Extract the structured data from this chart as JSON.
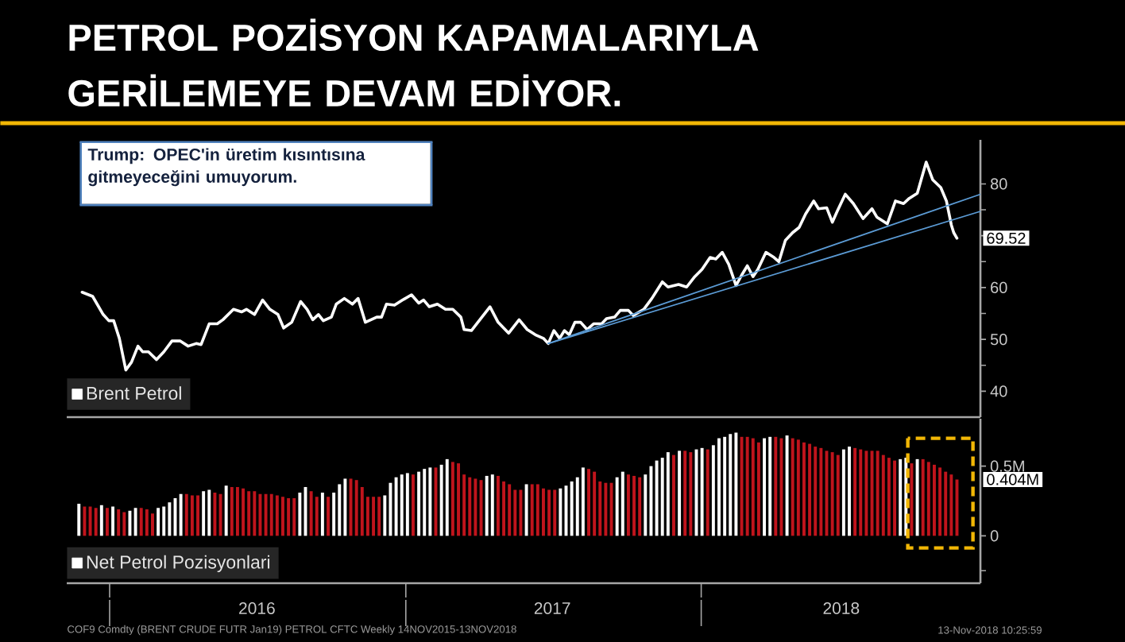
{
  "chart_data": [
    {
      "type": "line",
      "title": "PETROL POZİSYON KAPAMALARIYLA GERİLEMEYE DEVAM EDİYOR.",
      "tick_labels": "y",
      "legend": "bottom left",
      "xlim": [
        "2015-11-09",
        "2018-12-12"
      ],
      "ylim": [
        35,
        88.5
      ],
      "yticks": [
        40,
        {
          "value": 45,
          "label": null
        },
        50,
        {
          "value": 55,
          "label": null
        },
        60,
        {
          "value": 65,
          "label": null
        },
        {
          "value": 70,
          "label": null
        },
        {
          "value": 75,
          "label": null
        },
        80
      ],
      "annotations": [
        "Trump: OPEC'in üretim kısıntısına gitmeyeceğini umuyorum.",
        {
          "text": "69.52",
          "x": "2018-11-13",
          "y": 69.52
        }
      ],
      "series": [
        {
          "name": "Brent Petrol",
          "color": "#ffffff",
          "x": [
            "2015-11-28",
            "2015-12-11",
            "2015-12-24",
            "2015-12-31",
            "2016-01-06",
            "2016-01-13",
            "2016-01-21",
            "2016-01-28",
            "2016-02-05",
            "2016-02-11",
            "2016-02-18",
            "2016-02-28",
            "2016-03-08",
            "2016-03-18",
            "2016-03-28",
            "2016-04-07",
            "2016-04-17",
            "2016-04-23",
            "2016-05-03",
            "2016-05-13",
            "2016-05-20",
            "2016-06-02",
            "2016-06-12",
            "2016-06-18",
            "2016-06-28",
            "2016-07-08",
            "2016-07-17",
            "2016-07-27",
            "2016-08-03",
            "2016-08-13",
            "2016-08-24",
            "2016-09-01",
            "2016-09-08",
            "2016-09-15",
            "2016-09-21",
            "2016-10-01",
            "2016-10-07",
            "2016-10-17",
            "2016-10-27",
            "2016-11-03",
            "2016-11-12",
            "2016-11-26",
            "2016-12-02",
            "2016-12-08",
            "2016-12-18",
            "2016-12-28",
            "2017-01-08",
            "2017-01-17",
            "2017-01-23",
            "2017-01-30",
            "2017-02-09",
            "2017-02-19",
            "2017-02-28",
            "2017-03-10",
            "2017-03-14",
            "2017-03-23",
            "2017-04-05",
            "2017-04-15",
            "2017-04-25",
            "2017-05-08",
            "2017-05-21",
            "2017-05-31",
            "2017-06-10",
            "2017-06-20",
            "2017-06-26",
            "2017-07-03",
            "2017-07-10",
            "2017-07-16",
            "2017-07-22",
            "2017-07-29",
            "2017-08-05",
            "2017-08-13",
            "2017-08-21",
            "2017-08-31",
            "2017-09-06",
            "2017-09-16",
            "2017-09-23",
            "2017-10-03",
            "2017-10-09",
            "2017-10-22",
            "2017-11-01",
            "2017-11-14",
            "2017-11-21",
            "2017-12-04",
            "2017-12-14",
            "2017-12-24",
            "2018-01-02",
            "2018-01-12",
            "2018-01-19",
            "2018-01-27",
            "2018-02-04",
            "2018-02-13",
            "2018-02-20",
            "2018-02-27",
            "2018-03-06",
            "2018-03-12",
            "2018-03-22",
            "2018-04-01",
            "2018-04-07",
            "2018-04-15",
            "2018-04-24",
            "2018-05-02",
            "2018-05-10",
            "2018-05-20",
            "2018-05-26",
            "2018-06-05",
            "2018-06-12",
            "2018-06-18",
            "2018-06-28",
            "2018-07-08",
            "2018-07-20",
            "2018-07-31",
            "2018-08-06",
            "2018-08-19",
            "2018-08-29",
            "2018-09-08",
            "2018-09-15",
            "2018-09-25",
            "2018-10-06",
            "2018-10-14",
            "2018-10-24",
            "2018-10-31",
            "2018-11-06",
            "2018-11-09",
            "2018-11-13"
          ],
          "values": [
            59.1,
            58.3,
            54.8,
            53.6,
            53.6,
            50.2,
            44.1,
            45.6,
            48.7,
            47.6,
            47.6,
            46.1,
            47.6,
            49.7,
            49.7,
            48.7,
            49.2,
            49.0,
            53.0,
            53.0,
            53.8,
            55.8,
            55.3,
            55.8,
            54.8,
            57.6,
            55.8,
            54.8,
            52.2,
            53.3,
            57.3,
            55.8,
            53.8,
            54.8,
            53.6,
            54.3,
            56.8,
            57.9,
            56.8,
            57.9,
            53.3,
            54.3,
            54.3,
            56.8,
            56.6,
            57.6,
            58.6,
            57.0,
            57.6,
            56.3,
            56.8,
            55.8,
            55.8,
            54.3,
            51.9,
            51.7,
            54.3,
            56.3,
            53.3,
            51.2,
            53.8,
            51.9,
            50.9,
            50.2,
            49.2,
            51.7,
            50.2,
            51.7,
            50.9,
            53.3,
            53.3,
            51.9,
            53.0,
            53.0,
            54.0,
            54.3,
            55.6,
            55.6,
            54.6,
            55.8,
            57.9,
            61.1,
            60.1,
            60.6,
            60.1,
            62.1,
            63.5,
            65.8,
            65.5,
            66.8,
            64.5,
            60.4,
            62.4,
            64.2,
            62.1,
            63.5,
            66.8,
            65.8,
            65.0,
            69.1,
            70.6,
            71.6,
            74.2,
            76.7,
            75.2,
            75.4,
            72.6,
            74.7,
            78.0,
            76.2,
            73.3,
            75.2,
            73.6,
            72.3,
            76.7,
            76.2,
            77.2,
            78.2,
            84.2,
            80.8,
            79.3,
            76.7,
            72.1,
            70.6,
            69.52
          ]
        },
        {
          "type": "line",
          "color": "#5b9bd5",
          "x": [
            "2017-06-26",
            "2018-12-12"
          ],
          "values": [
            49.2,
            78.0
          ]
        },
        {
          "type": "line",
          "color": "#5b9bd5",
          "x": [
            "2017-06-26",
            "2018-12-12"
          ],
          "values": [
            49.2,
            74.7
          ]
        }
      ]
    },
    {
      "type": "bar",
      "legend": "bottom left",
      "xlim": [
        "2015-11-09",
        "2018-12-12"
      ],
      "ylim": [
        -0.34,
        0.84
      ],
      "xticks": [
        {
          "value": "2016-01-01",
          "label": null
        },
        {
          "value": "2016-07-01",
          "label": "2016"
        },
        {
          "value": "2017-01-01",
          "label": null
        },
        {
          "value": "2017-07-01",
          "label": "2017"
        },
        {
          "value": "2018-01-01",
          "label": null
        },
        {
          "value": "2018-06-23",
          "label": "2018"
        }
      ],
      "yticks": [
        {
          "value": -0.25,
          "label": null
        },
        0,
        {
          "value": 0.5,
          "label": "0.5M"
        }
      ],
      "annotations": [
        "COF9 Comdty (BRENT CRUDE FUTR Jan19) PETROL CFTC Weekly 14NOV2015-13NOV2018",
        {
          "text": "0.404M",
          "x": "2018-11-13",
          "y": 0.404
        },
        "13-Nov-2018 10:25:59"
      ],
      "series": [
        {
          "name": "Net Petrol Pozisyonlari",
          "color": "#ffffff",
          "x": [
            "2015-11-24",
            "2015-12-01",
            "2015-12-08",
            "2015-12-15",
            "2015-12-22",
            "2015-12-29",
            "2016-01-05",
            "2016-01-12",
            "2016-01-19",
            "2016-01-26",
            "2016-02-02",
            "2016-02-09",
            "2016-02-16",
            "2016-02-23",
            "2016-03-01",
            "2016-03-08",
            "2016-03-15",
            "2016-03-22",
            "2016-03-29",
            "2016-04-05",
            "2016-04-12",
            "2016-04-19",
            "2016-04-26",
            "2016-05-03",
            "2016-05-10",
            "2016-05-17",
            "2016-05-24",
            "2016-05-31",
            "2016-06-07",
            "2016-06-14",
            "2016-06-21",
            "2016-06-28",
            "2016-07-05",
            "2016-07-12",
            "2016-07-19",
            "2016-07-26",
            "2016-08-02",
            "2016-08-09",
            "2016-08-16",
            "2016-08-23",
            "2016-08-30",
            "2016-09-06",
            "2016-09-13",
            "2016-09-20",
            "2016-09-27",
            "2016-10-04",
            "2016-10-11",
            "2016-10-18",
            "2016-10-25",
            "2016-11-01",
            "2016-11-08",
            "2016-11-15",
            "2016-11-22",
            "2016-11-29",
            "2016-12-06",
            "2016-12-13",
            "2016-12-20",
            "2016-12-27",
            "2017-01-03",
            "2017-01-10",
            "2017-01-17",
            "2017-01-24",
            "2017-01-31",
            "2017-02-07",
            "2017-02-14",
            "2017-02-21",
            "2017-02-28",
            "2017-03-07",
            "2017-03-14",
            "2017-03-21",
            "2017-03-28",
            "2017-04-04",
            "2017-04-11",
            "2017-04-18",
            "2017-04-25",
            "2017-05-02",
            "2017-05-09",
            "2017-05-16",
            "2017-05-23",
            "2017-05-30",
            "2017-06-06",
            "2017-06-13",
            "2017-06-20",
            "2017-06-27",
            "2017-07-04",
            "2017-07-11",
            "2017-07-18",
            "2017-07-25",
            "2017-08-01",
            "2017-08-08",
            "2017-08-15",
            "2017-08-22",
            "2017-08-29",
            "2017-09-05",
            "2017-09-12",
            "2017-09-19",
            "2017-09-26",
            "2017-10-03",
            "2017-10-10",
            "2017-10-17",
            "2017-10-24",
            "2017-10-31",
            "2017-11-07",
            "2017-11-14",
            "2017-11-21",
            "2017-11-28",
            "2017-12-05",
            "2017-12-12",
            "2017-12-19",
            "2017-12-26",
            "2018-01-02",
            "2018-01-09",
            "2018-01-16",
            "2018-01-23",
            "2018-01-30",
            "2018-02-06",
            "2018-02-13",
            "2018-02-20",
            "2018-02-27",
            "2018-03-06",
            "2018-03-13",
            "2018-03-20",
            "2018-03-27",
            "2018-04-03",
            "2018-04-10",
            "2018-04-17",
            "2018-04-24",
            "2018-05-01",
            "2018-05-08",
            "2018-05-15",
            "2018-05-22",
            "2018-05-29",
            "2018-06-05",
            "2018-06-12",
            "2018-06-19",
            "2018-06-26",
            "2018-07-03",
            "2018-07-10",
            "2018-07-17",
            "2018-07-24",
            "2018-07-31",
            "2018-08-07",
            "2018-08-14",
            "2018-08-21",
            "2018-08-28",
            "2018-09-04",
            "2018-09-11",
            "2018-09-18",
            "2018-09-25",
            "2018-10-02",
            "2018-10-09",
            "2018-10-16",
            "2018-10-23",
            "2018-10-30",
            "2018-11-06",
            "2018-11-13"
          ],
          "values": [
            0.23,
            0.21,
            0.21,
            0.2,
            0.22,
            0.2,
            0.21,
            0.19,
            0.17,
            0.18,
            0.2,
            0.2,
            0.19,
            0.16,
            0.2,
            0.21,
            0.24,
            0.27,
            0.3,
            0.3,
            0.29,
            0.29,
            0.32,
            0.33,
            0.31,
            0.3,
            0.36,
            0.35,
            0.35,
            0.34,
            0.32,
            0.32,
            0.3,
            0.3,
            0.3,
            0.29,
            0.28,
            0.27,
            0.27,
            0.31,
            0.35,
            0.32,
            0.28,
            0.31,
            0.28,
            0.31,
            0.37,
            0.41,
            0.41,
            0.4,
            0.35,
            0.28,
            0.28,
            0.28,
            0.29,
            0.38,
            0.42,
            0.44,
            0.45,
            0.44,
            0.46,
            0.48,
            0.49,
            0.49,
            0.51,
            0.55,
            0.53,
            0.52,
            0.44,
            0.42,
            0.41,
            0.4,
            0.43,
            0.44,
            0.43,
            0.39,
            0.37,
            0.33,
            0.33,
            0.37,
            0.37,
            0.37,
            0.34,
            0.33,
            0.33,
            0.34,
            0.36,
            0.39,
            0.42,
            0.49,
            0.48,
            0.46,
            0.39,
            0.38,
            0.38,
            0.42,
            0.46,
            0.44,
            0.43,
            0.42,
            0.44,
            0.5,
            0.54,
            0.56,
            0.6,
            0.58,
            0.61,
            0.61,
            0.6,
            0.62,
            0.63,
            0.62,
            0.65,
            0.7,
            0.71,
            0.73,
            0.74,
            0.71,
            0.71,
            0.7,
            0.67,
            0.7,
            0.71,
            0.71,
            0.7,
            0.72,
            0.7,
            0.69,
            0.67,
            0.66,
            0.64,
            0.63,
            0.61,
            0.6,
            0.58,
            0.62,
            0.64,
            0.63,
            0.62,
            0.61,
            0.61,
            0.61,
            0.58,
            0.56,
            0.54,
            0.55,
            0.56,
            0.52,
            0.55,
            0.55,
            0.53,
            0.51,
            0.49,
            0.46,
            0.44,
            0.404
          ],
          "colors": [
            "#ffffff",
            "#c0141c",
            "#c0141c",
            "#c0141c",
            "#ffffff",
            "#c0141c",
            "#ffffff",
            "#c0141c",
            "#c0141c",
            "#ffffff",
            "#ffffff",
            "#c0141c",
            "#c0141c",
            "#c0141c",
            "#ffffff",
            "#ffffff",
            "#ffffff",
            "#ffffff",
            "#ffffff",
            "#c0141c",
            "#c0141c",
            "#c0141c",
            "#ffffff",
            "#ffffff",
            "#c0141c",
            "#c0141c",
            "#ffffff",
            "#c0141c",
            "#c0141c",
            "#c0141c",
            "#c0141c",
            "#c0141c",
            "#c0141c",
            "#c0141c",
            "#c0141c",
            "#c0141c",
            "#c0141c",
            "#c0141c",
            "#c0141c",
            "#ffffff",
            "#ffffff",
            "#c0141c",
            "#c0141c",
            "#ffffff",
            "#c0141c",
            "#ffffff",
            "#ffffff",
            "#ffffff",
            "#c0141c",
            "#c0141c",
            "#c0141c",
            "#c0141c",
            "#c0141c",
            "#c0141c",
            "#ffffff",
            "#ffffff",
            "#ffffff",
            "#ffffff",
            "#ffffff",
            "#c0141c",
            "#ffffff",
            "#ffffff",
            "#ffffff",
            "#c0141c",
            "#ffffff",
            "#ffffff",
            "#c0141c",
            "#c0141c",
            "#c0141c",
            "#c0141c",
            "#c0141c",
            "#c0141c",
            "#ffffff",
            "#ffffff",
            "#c0141c",
            "#c0141c",
            "#c0141c",
            "#c0141c",
            "#c0141c",
            "#ffffff",
            "#c0141c",
            "#c0141c",
            "#c0141c",
            "#c0141c",
            "#c0141c",
            "#ffffff",
            "#ffffff",
            "#ffffff",
            "#ffffff",
            "#ffffff",
            "#c0141c",
            "#c0141c",
            "#c0141c",
            "#c0141c",
            "#c0141c",
            "#ffffff",
            "#ffffff",
            "#c0141c",
            "#c0141c",
            "#c0141c",
            "#ffffff",
            "#ffffff",
            "#ffffff",
            "#ffffff",
            "#ffffff",
            "#c0141c",
            "#ffffff",
            "#c0141c",
            "#c0141c",
            "#ffffff",
            "#ffffff",
            "#c0141c",
            "#ffffff",
            "#ffffff",
            "#ffffff",
            "#ffffff",
            "#ffffff",
            "#c0141c",
            "#c0141c",
            "#c0141c",
            "#c0141c",
            "#ffffff",
            "#ffffff",
            "#c0141c",
            "#c0141c",
            "#ffffff",
            "#c0141c",
            "#c0141c",
            "#c0141c",
            "#c0141c",
            "#c0141c",
            "#c0141c",
            "#c0141c",
            "#c0141c",
            "#c0141c",
            "#ffffff",
            "#ffffff",
            "#c0141c",
            "#c0141c",
            "#c0141c",
            "#c0141c",
            "#c0141c",
            "#c0141c",
            "#c0141c",
            "#c0141c",
            "#ffffff",
            "#ffffff",
            "#c0141c",
            "#ffffff",
            "#c0141c",
            "#c0141c",
            "#c0141c",
            "#c0141c",
            "#c0141c",
            "#c0141c",
            "#c0141c"
          ]
        }
      ]
    }
  ]
}
